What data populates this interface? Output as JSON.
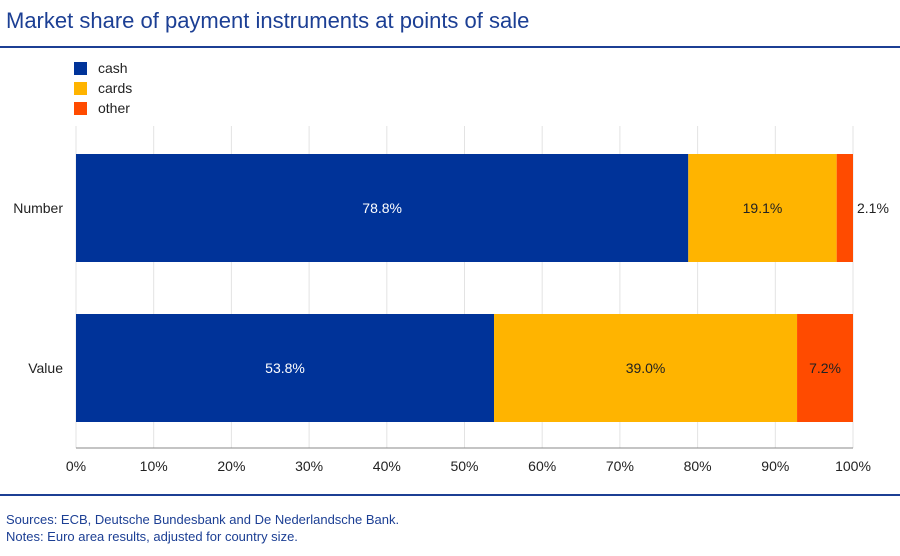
{
  "title": "Market share of payment instruments at points of sale",
  "footer": {
    "sources": "Sources: ECB, Deutsche Bundesbank and De Nederlandsche Bank.",
    "notes": "Notes: Euro area results, adjusted for country size."
  },
  "colors": {
    "cash": "#003399",
    "cards": "#ffb400",
    "other": "#ff4b00",
    "accent": "#1c3f94"
  },
  "chart_data": {
    "type": "bar",
    "orientation": "horizontal",
    "stacked": true,
    "categories": [
      "Number",
      "Value"
    ],
    "series": [
      {
        "name": "cash",
        "values": [
          78.8,
          53.8
        ],
        "labels": [
          "78.8%",
          "53.8%"
        ]
      },
      {
        "name": "cards",
        "values": [
          19.1,
          39.0
        ],
        "labels": [
          "19.1%",
          "39.0%"
        ]
      },
      {
        "name": "other",
        "values": [
          2.1,
          7.2
        ],
        "labels": [
          "2.1%",
          "7.2%"
        ]
      }
    ],
    "x_ticks": [
      "0%",
      "10%",
      "20%",
      "30%",
      "40%",
      "50%",
      "60%",
      "70%",
      "80%",
      "90%",
      "100%"
    ],
    "xlim": [
      0,
      100
    ],
    "grid": true,
    "legend": "top-left"
  }
}
